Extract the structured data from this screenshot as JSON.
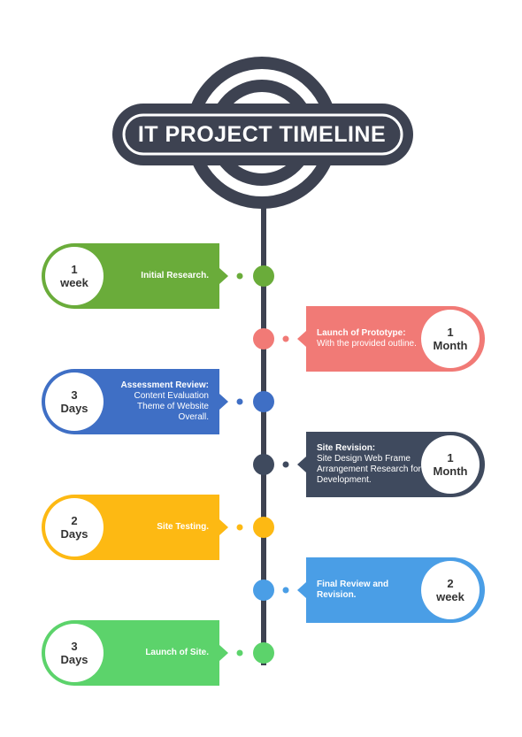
{
  "title": "IT PROJECT TIMELINE",
  "colors": {
    "dark": "#3d4251",
    "green": "#6aac3a",
    "salmon": "#f17a76",
    "blue": "#3f6fc5",
    "navy": "#3f4a5e",
    "yellow": "#fdb913",
    "lightblue": "#4a9ee6",
    "lightgreen": "#5cd36b"
  },
  "steps": [
    {
      "side": "left",
      "color": "green",
      "duration": [
        "1",
        "week"
      ],
      "heading": "",
      "lines": [
        "Initial Research."
      ]
    },
    {
      "side": "right",
      "color": "salmon",
      "duration": [
        "1",
        "Month"
      ],
      "heading": "Launch of Prototype:",
      "lines": [
        "With the provided outline."
      ]
    },
    {
      "side": "left",
      "color": "blue",
      "duration": [
        "3",
        "Days"
      ],
      "heading": "Assessment Review:",
      "lines": [
        "Content Evaluation",
        "Theme of Website",
        "Overall."
      ]
    },
    {
      "side": "right",
      "color": "navy",
      "duration": [
        "1",
        "Month"
      ],
      "heading": "Site Revision:",
      "lines": [
        "Site Design Web Frame",
        "Arrangement Research for",
        "Development."
      ]
    },
    {
      "side": "left",
      "color": "yellow",
      "duration": [
        "2",
        "Days"
      ],
      "heading": "",
      "lines": [
        "Site Testing."
      ]
    },
    {
      "side": "right",
      "color": "lightblue",
      "duration": [
        "2",
        "week"
      ],
      "heading": "",
      "lines": [
        "Final Review and",
        "Revision."
      ]
    },
    {
      "side": "left",
      "color": "lightgreen",
      "duration": [
        "3",
        "Days"
      ],
      "heading": "",
      "lines": [
        "Launch of Site."
      ]
    }
  ]
}
